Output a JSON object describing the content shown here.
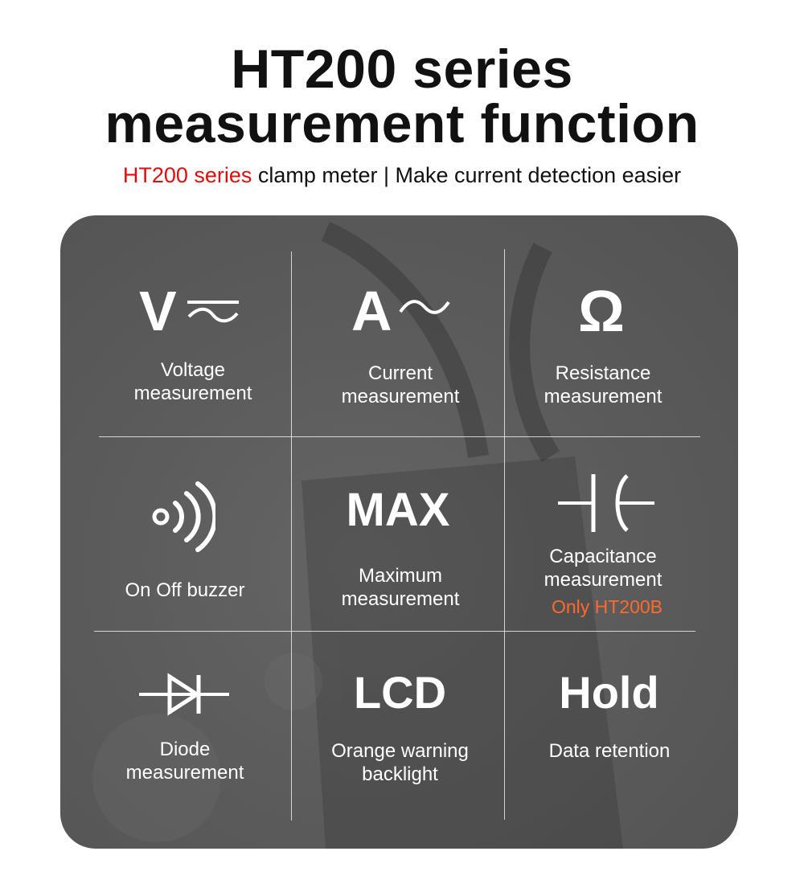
{
  "header": {
    "title_line1": "HT200 series",
    "title_line2": "measurement function",
    "subtitle_highlight": "HT200 series",
    "subtitle_rest": " clamp meter | Make current detection easier"
  },
  "colors": {
    "highlight_red": "#e00d0d",
    "note_orange": "#ff6a2a",
    "panel_gray": "#5c5c5c"
  },
  "features": {
    "voltage": {
      "symbol": "V",
      "icon": "ac-dc-voltage-icon",
      "line1": "Voltage",
      "line2": "measurement"
    },
    "current": {
      "symbol": "A~",
      "icon": "ac-current-icon",
      "line1": "Current",
      "line2": "measurement"
    },
    "resistance": {
      "symbol": "Ω",
      "icon": "ohm-icon",
      "line1": "Resistance",
      "line2": "measurement"
    },
    "buzzer": {
      "icon": "buzzer-icon",
      "line1": "On Off buzzer"
    },
    "maximum": {
      "symbol": "MAX",
      "line1": "Maximum",
      "line2": "measurement"
    },
    "capacitance": {
      "icon": "capacitor-icon",
      "line1": "Capacitance",
      "line2": "measurement",
      "note": "Only HT200B"
    },
    "diode": {
      "icon": "diode-icon",
      "line1": "Diode",
      "line2": "measurement"
    },
    "lcd": {
      "symbol": "LCD",
      "line1": "Orange warning",
      "line2": "backlight"
    },
    "hold": {
      "symbol": "Hold",
      "line1": "Data retention"
    }
  }
}
